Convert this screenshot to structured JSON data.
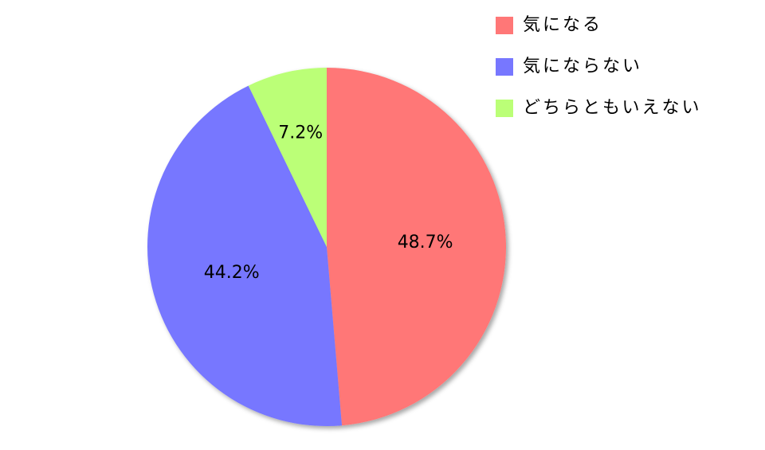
{
  "chart_data": {
    "type": "pie",
    "categories": [
      "気になる",
      "気にならない",
      "どちらともいえない"
    ],
    "values": [
      48.7,
      44.2,
      7.2
    ],
    "value_labels": [
      "48.7%",
      "44.2%",
      "7.2%"
    ],
    "colors": [
      "#ff7777",
      "#7777ff",
      "#bbff77"
    ],
    "legend": "top-right"
  }
}
